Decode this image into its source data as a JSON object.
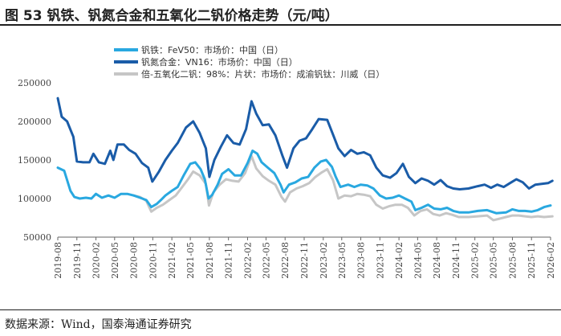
{
  "title": "图 53 钒铁、钒氮合金和五氧化二钒价格走势（元/吨）",
  "source": "数据来源：Wind，国泰海通证券研究",
  "chart_data": {
    "type": "line",
    "title": "钒铁、钒氮合金和五氧化二钒价格走势（元/吨）",
    "ylim": [
      50000,
      250000
    ],
    "yticks": [
      "50000",
      "100000",
      "150000",
      "200000",
      "250000"
    ],
    "xticks": [
      "2019-08",
      "2019-11",
      "2020-02",
      "2020-05",
      "2020-08",
      "2020-11",
      "2021-02",
      "2021-05",
      "2021-08",
      "2021-11",
      "2022-02",
      "2022-05",
      "2022-08",
      "2022-11",
      "2023-02",
      "2023-05",
      "2023-08",
      "2023-11",
      "2024-02",
      "2024-05",
      "2024-08",
      "2024-11",
      "2025-02",
      "2025-05",
      "2025-08",
      "2025-11",
      "2026-02"
    ],
    "legend_position": "top-left",
    "grid": false,
    "series": [
      {
        "name": "钒铁：FeV50：市场价：中国（日）",
        "color": "#29a8e0",
        "width": 3,
        "points": [
          [
            "2019-08-01",
            140000
          ],
          [
            "2019-09-01",
            136000
          ],
          [
            "2019-10-01",
            110000
          ],
          [
            "2019-10-20",
            102000
          ],
          [
            "2019-11-15",
            100000
          ],
          [
            "2019-12-15",
            101000
          ],
          [
            "2020-01-10",
            100000
          ],
          [
            "2020-02-01",
            106000
          ],
          [
            "2020-03-01",
            101000
          ],
          [
            "2020-04-01",
            104000
          ],
          [
            "2020-05-01",
            101000
          ],
          [
            "2020-06-01",
            106000
          ],
          [
            "2020-07-01",
            106000
          ],
          [
            "2020-08-01",
            104000
          ],
          [
            "2020-09-01",
            101000
          ],
          [
            "2020-10-01",
            98000
          ],
          [
            "2020-10-25",
            89000
          ],
          [
            "2020-11-20",
            93000
          ],
          [
            "2020-12-10",
            98000
          ],
          [
            "2021-01-01",
            104000
          ],
          [
            "2021-02-01",
            110000
          ],
          [
            "2021-03-01",
            115000
          ],
          [
            "2021-04-01",
            131000
          ],
          [
            "2021-05-01",
            145000
          ],
          [
            "2021-05-25",
            147000
          ],
          [
            "2021-06-20",
            138000
          ],
          [
            "2021-07-10",
            125000
          ],
          [
            "2021-07-28",
            100000
          ],
          [
            "2021-08-15",
            105000
          ],
          [
            "2021-09-10",
            118000
          ],
          [
            "2021-10-01",
            132000
          ],
          [
            "2021-11-01",
            138000
          ],
          [
            "2021-12-01",
            130000
          ],
          [
            "2022-01-01",
            130000
          ],
          [
            "2022-02-01",
            146000
          ],
          [
            "2022-02-25",
            162000
          ],
          [
            "2022-03-20",
            158000
          ],
          [
            "2022-04-10",
            147000
          ],
          [
            "2022-05-10",
            140000
          ],
          [
            "2022-06-10",
            133000
          ],
          [
            "2022-07-10",
            118000
          ],
          [
            "2022-07-25",
            108000
          ],
          [
            "2022-08-20",
            118000
          ],
          [
            "2022-09-20",
            121000
          ],
          [
            "2022-10-20",
            126000
          ],
          [
            "2022-11-20",
            128000
          ],
          [
            "2022-12-20",
            140000
          ],
          [
            "2023-01-20",
            148000
          ],
          [
            "2023-02-15",
            150000
          ],
          [
            "2023-03-15",
            141000
          ],
          [
            "2023-04-01",
            129000
          ],
          [
            "2023-04-25",
            115000
          ],
          [
            "2023-06-01",
            118000
          ],
          [
            "2023-07-01",
            115000
          ],
          [
            "2023-08-01",
            118000
          ],
          [
            "2023-09-01",
            117000
          ],
          [
            "2023-10-01",
            113000
          ],
          [
            "2023-11-01",
            104000
          ],
          [
            "2023-12-01",
            100000
          ],
          [
            "2024-01-01",
            101000
          ],
          [
            "2024-02-01",
            104000
          ],
          [
            "2024-03-01",
            100000
          ],
          [
            "2024-04-01",
            96000
          ],
          [
            "2024-04-20",
            85000
          ],
          [
            "2024-05-20",
            88000
          ],
          [
            "2024-06-20",
            92000
          ],
          [
            "2024-07-20",
            87000
          ],
          [
            "2024-08-20",
            86000
          ],
          [
            "2024-09-20",
            88000
          ],
          [
            "2024-10-20",
            84000
          ],
          [
            "2024-11-20",
            82000
          ],
          [
            "2025-01-01",
            82000
          ],
          [
            "2025-02-15",
            84000
          ],
          [
            "2025-04-01",
            85000
          ],
          [
            "2025-05-15",
            81000
          ],
          [
            "2025-07-01",
            82000
          ],
          [
            "2025-08-01",
            86000
          ],
          [
            "2025-09-01",
            84000
          ],
          [
            "2025-10-01",
            84000
          ],
          [
            "2025-11-01",
            83000
          ],
          [
            "2025-12-01",
            85000
          ],
          [
            "2026-01-01",
            89000
          ],
          [
            "2026-02-01",
            91000
          ]
        ]
      },
      {
        "name": "钒氮合金：VN16：市场价：中国（日）",
        "color": "#1a5ca8",
        "width": 3,
        "points": [
          [
            "2019-08-01",
            230000
          ],
          [
            "2019-08-20",
            206000
          ],
          [
            "2019-09-15",
            200000
          ],
          [
            "2019-10-15",
            180000
          ],
          [
            "2019-11-01",
            148000
          ],
          [
            "2019-12-01",
            147000
          ],
          [
            "2020-01-01",
            147000
          ],
          [
            "2020-01-20",
            158000
          ],
          [
            "2020-02-15",
            147000
          ],
          [
            "2020-03-15",
            145000
          ],
          [
            "2020-04-10",
            162000
          ],
          [
            "2020-04-25",
            150000
          ],
          [
            "2020-05-15",
            170000
          ],
          [
            "2020-06-15",
            170000
          ],
          [
            "2020-07-10",
            163000
          ],
          [
            "2020-08-10",
            158000
          ],
          [
            "2020-09-10",
            146000
          ],
          [
            "2020-10-10",
            140000
          ],
          [
            "2020-10-30",
            122000
          ],
          [
            "2020-12-01",
            135000
          ],
          [
            "2021-01-01",
            150000
          ],
          [
            "2021-02-01",
            162000
          ],
          [
            "2021-03-01",
            172000
          ],
          [
            "2021-04-10",
            192000
          ],
          [
            "2021-05-15",
            200000
          ],
          [
            "2021-06-15",
            185000
          ],
          [
            "2021-07-15",
            165000
          ],
          [
            "2021-08-01",
            128000
          ],
          [
            "2021-08-25",
            150000
          ],
          [
            "2021-09-25",
            167000
          ],
          [
            "2021-10-25",
            182000
          ],
          [
            "2021-11-25",
            172000
          ],
          [
            "2021-12-25",
            170000
          ],
          [
            "2022-01-25",
            190000
          ],
          [
            "2022-02-20",
            226000
          ],
          [
            "2022-03-15",
            210000
          ],
          [
            "2022-04-15",
            195000
          ],
          [
            "2022-05-15",
            196000
          ],
          [
            "2022-06-15",
            182000
          ],
          [
            "2022-07-20",
            155000
          ],
          [
            "2022-08-10",
            140000
          ],
          [
            "2022-09-10",
            165000
          ],
          [
            "2022-10-10",
            175000
          ],
          [
            "2022-11-10",
            178000
          ],
          [
            "2022-12-10",
            190000
          ],
          [
            "2023-01-10",
            203000
          ],
          [
            "2023-02-20",
            202000
          ],
          [
            "2023-03-20",
            183000
          ],
          [
            "2023-04-15",
            165000
          ],
          [
            "2023-05-15",
            155000
          ],
          [
            "2023-06-15",
            163000
          ],
          [
            "2023-07-15",
            158000
          ],
          [
            "2023-08-15",
            160000
          ],
          [
            "2023-09-15",
            156000
          ],
          [
            "2023-10-15",
            140000
          ],
          [
            "2023-11-15",
            130000
          ],
          [
            "2023-12-20",
            127000
          ],
          [
            "2024-01-20",
            133000
          ],
          [
            "2024-02-20",
            145000
          ],
          [
            "2024-03-20",
            128000
          ],
          [
            "2024-04-20",
            120000
          ],
          [
            "2024-05-20",
            126000
          ],
          [
            "2024-06-20",
            123000
          ],
          [
            "2024-07-20",
            118000
          ],
          [
            "2024-08-20",
            124000
          ],
          [
            "2024-09-20",
            116000
          ],
          [
            "2024-10-20",
            113000
          ],
          [
            "2024-11-20",
            112000
          ],
          [
            "2025-01-01",
            113000
          ],
          [
            "2025-02-15",
            116000
          ],
          [
            "2025-03-20",
            118000
          ],
          [
            "2025-04-20",
            114000
          ],
          [
            "2025-05-20",
            118000
          ],
          [
            "2025-06-20",
            115000
          ],
          [
            "2025-07-20",
            120000
          ],
          [
            "2025-08-20",
            125000
          ],
          [
            "2025-09-20",
            121000
          ],
          [
            "2025-10-20",
            113000
          ],
          [
            "2025-11-20",
            118000
          ],
          [
            "2025-12-20",
            119000
          ],
          [
            "2026-01-20",
            120000
          ],
          [
            "2026-02-10",
            123000
          ]
        ]
      },
      {
        "name": "倍-五氧化二钒：98%：片状：市场价：成渝钒钛：川威（日）",
        "color": "#c6c6c6",
        "width": 3,
        "points": [
          [
            "2020-08-01",
            104000
          ],
          [
            "2020-09-01",
            102000
          ],
          [
            "2020-10-01",
            97000
          ],
          [
            "2020-10-25",
            83000
          ],
          [
            "2020-11-20",
            88000
          ],
          [
            "2020-12-20",
            92000
          ],
          [
            "2021-01-20",
            98000
          ],
          [
            "2021-02-20",
            104000
          ],
          [
            "2021-03-20",
            114000
          ],
          [
            "2021-04-20",
            125000
          ],
          [
            "2021-05-15",
            135000
          ],
          [
            "2021-06-15",
            130000
          ],
          [
            "2021-07-15",
            119000
          ],
          [
            "2021-07-30",
            91000
          ],
          [
            "2021-08-20",
            108000
          ],
          [
            "2021-09-20",
            118000
          ],
          [
            "2021-10-20",
            125000
          ],
          [
            "2021-11-20",
            123000
          ],
          [
            "2021-12-20",
            122000
          ],
          [
            "2022-01-20",
            133000
          ],
          [
            "2022-02-20",
            155000
          ],
          [
            "2022-03-15",
            139000
          ],
          [
            "2022-04-15",
            129000
          ],
          [
            "2022-05-15",
            123000
          ],
          [
            "2022-06-15",
            118000
          ],
          [
            "2022-07-15",
            102000
          ],
          [
            "2022-08-01",
            96000
          ],
          [
            "2022-08-25",
            108000
          ],
          [
            "2022-09-25",
            113000
          ],
          [
            "2022-10-25",
            116000
          ],
          [
            "2022-11-25",
            120000
          ],
          [
            "2022-12-25",
            128000
          ],
          [
            "2023-01-25",
            134000
          ],
          [
            "2023-02-20",
            138000
          ],
          [
            "2023-03-20",
            124000
          ],
          [
            "2023-04-15",
            100000
          ],
          [
            "2023-05-15",
            104000
          ],
          [
            "2023-06-15",
            103000
          ],
          [
            "2023-07-15",
            106000
          ],
          [
            "2023-08-15",
            105000
          ],
          [
            "2023-09-15",
            103000
          ],
          [
            "2023-10-15",
            92000
          ],
          [
            "2023-11-15",
            87000
          ],
          [
            "2023-12-15",
            90000
          ],
          [
            "2024-01-15",
            92000
          ],
          [
            "2024-02-15",
            92000
          ],
          [
            "2024-03-15",
            88000
          ],
          [
            "2024-04-15",
            78000
          ],
          [
            "2024-05-15",
            84000
          ],
          [
            "2024-06-15",
            86000
          ],
          [
            "2024-07-15",
            80000
          ],
          [
            "2024-08-15",
            78000
          ],
          [
            "2024-09-15",
            81000
          ],
          [
            "2024-10-15",
            79000
          ],
          [
            "2024-11-15",
            76000
          ],
          [
            "2025-01-01",
            76000
          ],
          [
            "2025-02-15",
            77000
          ],
          [
            "2025-04-01",
            78000
          ],
          [
            "2025-05-01",
            72000
          ],
          [
            "2025-06-01",
            74000
          ],
          [
            "2025-07-01",
            76000
          ],
          [
            "2025-08-01",
            78000
          ],
          [
            "2025-09-01",
            78000
          ],
          [
            "2025-10-01",
            77000
          ],
          [
            "2025-11-01",
            76000
          ],
          [
            "2025-12-01",
            77000
          ],
          [
            "2026-01-01",
            76000
          ],
          [
            "2026-02-10",
            77000
          ]
        ]
      }
    ]
  }
}
